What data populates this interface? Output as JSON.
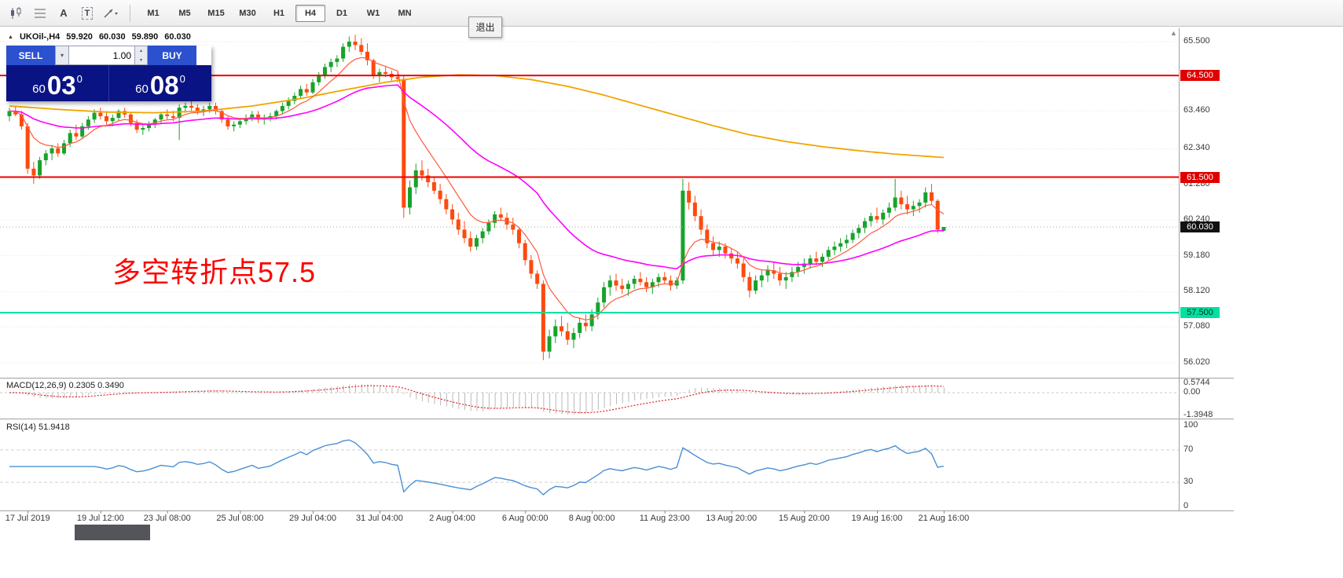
{
  "toolbar": {
    "icons": [
      {
        "name": "chart-candles-icon"
      },
      {
        "name": "chart-grid-icon"
      },
      {
        "name": "annotate-a-icon",
        "glyph": "A"
      },
      {
        "name": "text-tool-icon",
        "glyph": "T"
      },
      {
        "name": "draw-tools-icon"
      }
    ],
    "timeframes": [
      "M1",
      "M5",
      "M15",
      "M30",
      "H1",
      "H4",
      "D1",
      "W1",
      "MN"
    ],
    "active_timeframe": "H4"
  },
  "glyphs": {
    "caret_down": "▾",
    "spin_up": "▴",
    "spin_down": "▾",
    "collapse_triangle": "▲",
    "triangle_up": "▲"
  },
  "exit_button": {
    "label": "退出"
  },
  "symbol_bar": {
    "symbol": "UKOil-,H4",
    "open": "59.920",
    "high": "60.030",
    "low": "59.890",
    "close": "60.030"
  },
  "trade_panel": {
    "sell_label": "SELL",
    "buy_label": "BUY",
    "volume": "1.00",
    "sell_price_prefix": "60",
    "sell_price_main": "03",
    "sell_price_sup": "0",
    "buy_price_prefix": "60",
    "buy_price_main": "08",
    "buy_price_sup": "0"
  },
  "annotation": {
    "text": "多空转折点57.5",
    "color": "#ff0000"
  },
  "price_axis": {
    "labels": [
      "65.500",
      "63.460",
      "62.340",
      "61.280",
      "60.240",
      "59.180",
      "58.120",
      "57.080",
      "56.020"
    ],
    "badges": [
      {
        "value": "64.500",
        "bg": "#e00000",
        "fg": "#ffffff",
        "price": 64.5
      },
      {
        "value": "61.500",
        "bg": "#e00000",
        "fg": "#ffffff",
        "price": 61.5
      },
      {
        "value": "60.030",
        "bg": "#111111",
        "fg": "#ffffff",
        "price": 60.03
      },
      {
        "value": "57.500",
        "bg": "#00e0a0",
        "fg": "#00301f",
        "price": 57.5
      }
    ]
  },
  "macd_panel": {
    "label": "MACD(12,26,9) 0.2305 0.3490",
    "scale_top": "0.5744",
    "scale_zero": "0.00",
    "scale_bottom": "-1.3948"
  },
  "rsi_panel": {
    "label": "RSI(14) 51.9418",
    "scale": [
      "100",
      "70",
      "30",
      "0"
    ],
    "levels": [
      70,
      30
    ]
  },
  "chart_data": {
    "type": "candlestick",
    "symbol": "UKOil-",
    "timeframe": "H4",
    "last_ohlc": {
      "open": 59.92,
      "high": 60.03,
      "low": 59.89,
      "close": 60.03
    },
    "visible_price_range": [
      55.7,
      65.9
    ],
    "hlines": [
      {
        "price": 64.5,
        "color": "#ee0000"
      },
      {
        "price": 61.5,
        "color": "#ee0000"
      },
      {
        "price": 57.5,
        "color": "#00dfa0"
      }
    ],
    "bid_line": {
      "price": 60.03,
      "color": "#aaaaaa"
    },
    "time_ticks": [
      {
        "i": 3,
        "label": "17 Jul 2019"
      },
      {
        "i": 15,
        "label": "19 Jul 12:00"
      },
      {
        "i": 26,
        "label": "23 Jul 08:00"
      },
      {
        "i": 38,
        "label": "25 Jul 08:00"
      },
      {
        "i": 50,
        "label": "29 Jul 04:00"
      },
      {
        "i": 61,
        "label": "31 Jul 04:00"
      },
      {
        "i": 73,
        "label": "2 Aug 04:00"
      },
      {
        "i": 85,
        "label": "6 Aug 00:00"
      },
      {
        "i": 96,
        "label": "8 Aug 00:00"
      },
      {
        "i": 108,
        "label": "11 Aug 23:00"
      },
      {
        "i": 119,
        "label": "13 Aug 20:00"
      },
      {
        "i": 131,
        "label": "15 Aug 20:00"
      },
      {
        "i": 143,
        "label": "19 Aug 16:00"
      },
      {
        "i": 154,
        "label": "21 Aug 16:00"
      }
    ],
    "indicators": {
      "macd": {
        "fast": 12,
        "slow": 26,
        "signal": 9,
        "current": "0.2305",
        "current_signal": "0.3490"
      },
      "rsi": {
        "period": 14,
        "current": "51.9418"
      }
    },
    "ma_lines": {
      "fast": {
        "color": "#ff5a3c",
        "period": 8
      },
      "mid": {
        "color": "#ff00ff",
        "period": 34
      },
      "slow": {
        "color": "#f0a500",
        "points": [
          [
            0,
            63.6
          ],
          [
            8,
            63.5
          ],
          [
            16,
            63.42
          ],
          [
            24,
            63.4
          ],
          [
            32,
            63.45
          ],
          [
            40,
            63.6
          ],
          [
            48,
            63.82
          ],
          [
            56,
            64.1
          ],
          [
            62,
            64.3
          ],
          [
            68,
            64.45
          ],
          [
            74,
            64.52
          ],
          [
            80,
            64.5
          ],
          [
            86,
            64.38
          ],
          [
            92,
            64.18
          ],
          [
            98,
            63.92
          ],
          [
            104,
            63.62
          ],
          [
            110,
            63.32
          ],
          [
            116,
            63.02
          ],
          [
            122,
            62.75
          ],
          [
            128,
            62.55
          ],
          [
            134,
            62.4
          ],
          [
            140,
            62.28
          ],
          [
            146,
            62.18
          ],
          [
            154,
            62.08
          ]
        ]
      }
    },
    "colors": {
      "bull": "#17a32b",
      "bear": "#fd4a0e",
      "macd_hist": "#b9b9b9",
      "macd_signal": "#e02020",
      "rsi_line": "#4a8fd4",
      "grid": "#e7e7e7"
    },
    "ohlc_order": [
      "open",
      "high",
      "low",
      "close"
    ],
    "candles": [
      [
        63.3,
        63.55,
        63.15,
        63.45
      ],
      [
        63.45,
        63.6,
        63.3,
        63.35
      ],
      [
        63.35,
        63.45,
        62.9,
        63.0
      ],
      [
        63.0,
        63.1,
        61.6,
        61.75
      ],
      [
        61.75,
        61.95,
        61.3,
        61.55
      ],
      [
        61.55,
        62.1,
        61.45,
        62.0
      ],
      [
        62.0,
        62.3,
        61.85,
        62.2
      ],
      [
        62.2,
        62.45,
        62.0,
        62.35
      ],
      [
        62.35,
        62.5,
        62.1,
        62.2
      ],
      [
        62.2,
        62.6,
        62.15,
        62.5
      ],
      [
        62.5,
        62.9,
        62.4,
        62.8
      ],
      [
        62.8,
        63.05,
        62.6,
        62.7
      ],
      [
        62.7,
        63.1,
        62.65,
        63.0
      ],
      [
        63.0,
        63.3,
        62.9,
        63.2
      ],
      [
        63.2,
        63.5,
        63.1,
        63.4
      ],
      [
        63.4,
        63.55,
        63.2,
        63.3
      ],
      [
        63.3,
        63.45,
        63.05,
        63.15
      ],
      [
        63.15,
        63.35,
        63.0,
        63.25
      ],
      [
        63.25,
        63.5,
        63.15,
        63.45
      ],
      [
        63.45,
        63.55,
        63.25,
        63.35
      ],
      [
        63.35,
        63.4,
        63.0,
        63.1
      ],
      [
        63.1,
        63.2,
        62.8,
        62.9
      ],
      [
        62.9,
        63.05,
        62.75,
        62.95
      ],
      [
        62.95,
        63.15,
        62.85,
        63.05
      ],
      [
        63.05,
        63.25,
        62.95,
        63.2
      ],
      [
        63.2,
        63.4,
        63.1,
        63.35
      ],
      [
        63.35,
        63.5,
        63.2,
        63.3
      ],
      [
        63.3,
        63.45,
        63.15,
        63.25
      ],
      [
        63.25,
        63.65,
        62.6,
        63.55
      ],
      [
        63.55,
        63.7,
        63.4,
        63.6
      ],
      [
        63.6,
        63.75,
        63.45,
        63.55
      ],
      [
        63.55,
        63.65,
        63.35,
        63.45
      ],
      [
        63.45,
        63.6,
        63.3,
        63.5
      ],
      [
        63.5,
        63.7,
        63.4,
        63.6
      ],
      [
        63.6,
        63.7,
        63.35,
        63.45
      ],
      [
        63.45,
        63.5,
        63.1,
        63.2
      ],
      [
        63.2,
        63.3,
        62.9,
        63.0
      ],
      [
        63.0,
        63.15,
        62.85,
        63.05
      ],
      [
        63.05,
        63.25,
        62.95,
        63.15
      ],
      [
        63.15,
        63.35,
        63.05,
        63.25
      ],
      [
        63.25,
        63.45,
        63.15,
        63.35
      ],
      [
        63.35,
        63.45,
        63.1,
        63.2
      ],
      [
        63.2,
        63.35,
        63.05,
        63.25
      ],
      [
        63.25,
        63.4,
        63.15,
        63.3
      ],
      [
        63.3,
        63.5,
        63.2,
        63.45
      ],
      [
        63.45,
        63.7,
        63.35,
        63.6
      ],
      [
        63.6,
        63.85,
        63.5,
        63.75
      ],
      [
        63.75,
        64.0,
        63.65,
        63.9
      ],
      [
        63.9,
        64.2,
        63.8,
        64.1
      ],
      [
        64.1,
        64.25,
        63.9,
        64.0
      ],
      [
        64.0,
        64.4,
        63.95,
        64.3
      ],
      [
        64.3,
        64.6,
        64.2,
        64.5
      ],
      [
        64.5,
        64.85,
        64.4,
        64.75
      ],
      [
        64.75,
        65.0,
        64.6,
        64.9
      ],
      [
        64.9,
        65.1,
        64.75,
        65.0
      ],
      [
        65.0,
        65.45,
        64.9,
        65.35
      ],
      [
        65.35,
        65.65,
        65.2,
        65.5
      ],
      [
        65.5,
        65.7,
        65.25,
        65.4
      ],
      [
        65.4,
        65.6,
        65.1,
        65.2
      ],
      [
        65.2,
        65.45,
        64.8,
        64.95
      ],
      [
        64.95,
        65.0,
        64.4,
        64.5
      ],
      [
        64.5,
        64.7,
        64.3,
        64.6
      ],
      [
        64.6,
        64.75,
        64.45,
        64.55
      ],
      [
        64.55,
        64.65,
        64.35,
        64.45
      ],
      [
        64.45,
        64.6,
        64.3,
        64.4
      ],
      [
        64.4,
        64.5,
        60.3,
        60.6
      ],
      [
        60.6,
        61.4,
        60.4,
        61.2
      ],
      [
        61.2,
        61.9,
        61.0,
        61.7
      ],
      [
        61.7,
        62.0,
        61.4,
        61.55
      ],
      [
        61.55,
        61.75,
        61.2,
        61.35
      ],
      [
        61.35,
        61.5,
        61.0,
        61.1
      ],
      [
        61.1,
        61.3,
        60.7,
        60.85
      ],
      [
        60.85,
        61.0,
        60.4,
        60.55
      ],
      [
        60.55,
        60.7,
        60.1,
        60.25
      ],
      [
        60.25,
        60.45,
        59.8,
        59.95
      ],
      [
        59.95,
        60.2,
        59.55,
        59.7
      ],
      [
        59.7,
        59.9,
        59.3,
        59.45
      ],
      [
        59.45,
        59.8,
        59.35,
        59.7
      ],
      [
        59.7,
        60.0,
        59.55,
        59.9
      ],
      [
        59.9,
        60.25,
        59.8,
        60.15
      ],
      [
        60.15,
        60.5,
        60.0,
        60.4
      ],
      [
        60.4,
        60.6,
        60.2,
        60.3
      ],
      [
        60.3,
        60.45,
        59.95,
        60.1
      ],
      [
        60.1,
        60.3,
        59.8,
        59.95
      ],
      [
        59.95,
        60.0,
        59.4,
        59.55
      ],
      [
        59.55,
        59.65,
        58.9,
        59.05
      ],
      [
        59.05,
        59.2,
        58.5,
        58.65
      ],
      [
        58.65,
        58.75,
        58.2,
        58.35
      ],
      [
        58.35,
        58.45,
        56.1,
        56.35
      ],
      [
        56.35,
        57.0,
        56.15,
        56.8
      ],
      [
        56.8,
        57.3,
        56.6,
        57.1
      ],
      [
        57.1,
        57.4,
        56.8,
        56.95
      ],
      [
        56.95,
        57.2,
        56.55,
        56.7
      ],
      [
        56.7,
        57.05,
        56.45,
        56.9
      ],
      [
        56.9,
        57.35,
        56.75,
        57.2
      ],
      [
        57.2,
        57.45,
        56.95,
        57.1
      ],
      [
        57.1,
        57.6,
        56.95,
        57.45
      ],
      [
        57.45,
        57.95,
        57.3,
        57.8
      ],
      [
        57.8,
        58.4,
        57.65,
        58.25
      ],
      [
        58.25,
        58.6,
        58.0,
        58.45
      ],
      [
        58.45,
        58.65,
        58.15,
        58.3
      ],
      [
        58.3,
        58.5,
        58.05,
        58.2
      ],
      [
        58.2,
        58.45,
        58.0,
        58.35
      ],
      [
        58.35,
        58.6,
        58.2,
        58.5
      ],
      [
        58.5,
        58.7,
        58.3,
        58.4
      ],
      [
        58.4,
        58.55,
        58.1,
        58.25
      ],
      [
        58.25,
        58.5,
        58.05,
        58.4
      ],
      [
        58.4,
        58.65,
        58.25,
        58.55
      ],
      [
        58.55,
        58.7,
        58.35,
        58.45
      ],
      [
        58.45,
        58.6,
        58.15,
        58.3
      ],
      [
        58.3,
        58.55,
        58.2,
        58.45
      ],
      [
        58.45,
        61.45,
        58.35,
        61.1
      ],
      [
        61.1,
        61.35,
        60.55,
        60.75
      ],
      [
        60.75,
        60.95,
        60.2,
        60.35
      ],
      [
        60.35,
        60.55,
        59.8,
        59.95
      ],
      [
        59.95,
        60.1,
        59.4,
        59.55
      ],
      [
        59.55,
        59.75,
        59.2,
        59.35
      ],
      [
        59.35,
        59.6,
        59.15,
        59.45
      ],
      [
        59.45,
        59.55,
        59.1,
        59.25
      ],
      [
        59.25,
        59.4,
        58.95,
        59.1
      ],
      [
        59.1,
        59.3,
        58.8,
        58.95
      ],
      [
        58.95,
        59.1,
        58.4,
        58.55
      ],
      [
        58.55,
        58.7,
        57.95,
        58.15
      ],
      [
        58.15,
        58.6,
        58.05,
        58.45
      ],
      [
        58.45,
        58.75,
        58.25,
        58.6
      ],
      [
        58.6,
        58.9,
        58.4,
        58.75
      ],
      [
        58.75,
        59.0,
        58.5,
        58.65
      ],
      [
        58.65,
        58.85,
        58.3,
        58.45
      ],
      [
        58.45,
        58.7,
        58.2,
        58.55
      ],
      [
        58.55,
        58.85,
        58.4,
        58.7
      ],
      [
        58.7,
        59.0,
        58.55,
        58.85
      ],
      [
        58.85,
        59.1,
        58.65,
        58.95
      ],
      [
        58.95,
        59.2,
        58.8,
        59.1
      ],
      [
        59.1,
        59.3,
        58.9,
        59.0
      ],
      [
        59.0,
        59.25,
        58.85,
        59.15
      ],
      [
        59.15,
        59.45,
        59.05,
        59.35
      ],
      [
        59.35,
        59.6,
        59.2,
        59.45
      ],
      [
        59.45,
        59.7,
        59.3,
        59.55
      ],
      [
        59.55,
        59.8,
        59.4,
        59.65
      ],
      [
        59.65,
        59.95,
        59.55,
        59.85
      ],
      [
        59.85,
        60.1,
        59.7,
        60.0
      ],
      [
        60.0,
        60.3,
        59.85,
        60.2
      ],
      [
        60.2,
        60.45,
        60.05,
        60.35
      ],
      [
        60.35,
        60.6,
        60.15,
        60.25
      ],
      [
        60.25,
        60.55,
        60.1,
        60.45
      ],
      [
        60.45,
        60.75,
        60.3,
        60.6
      ],
      [
        60.6,
        61.45,
        60.5,
        60.9
      ],
      [
        60.9,
        61.1,
        60.55,
        60.7
      ],
      [
        60.7,
        60.95,
        60.4,
        60.55
      ],
      [
        60.55,
        60.8,
        60.35,
        60.65
      ],
      [
        60.65,
        60.85,
        60.45,
        60.75
      ],
      [
        60.75,
        61.2,
        60.6,
        61.05
      ],
      [
        61.05,
        61.3,
        60.7,
        60.8
      ],
      [
        60.8,
        60.85,
        59.85,
        59.95
      ],
      [
        59.92,
        60.03,
        59.89,
        60.03
      ]
    ]
  }
}
